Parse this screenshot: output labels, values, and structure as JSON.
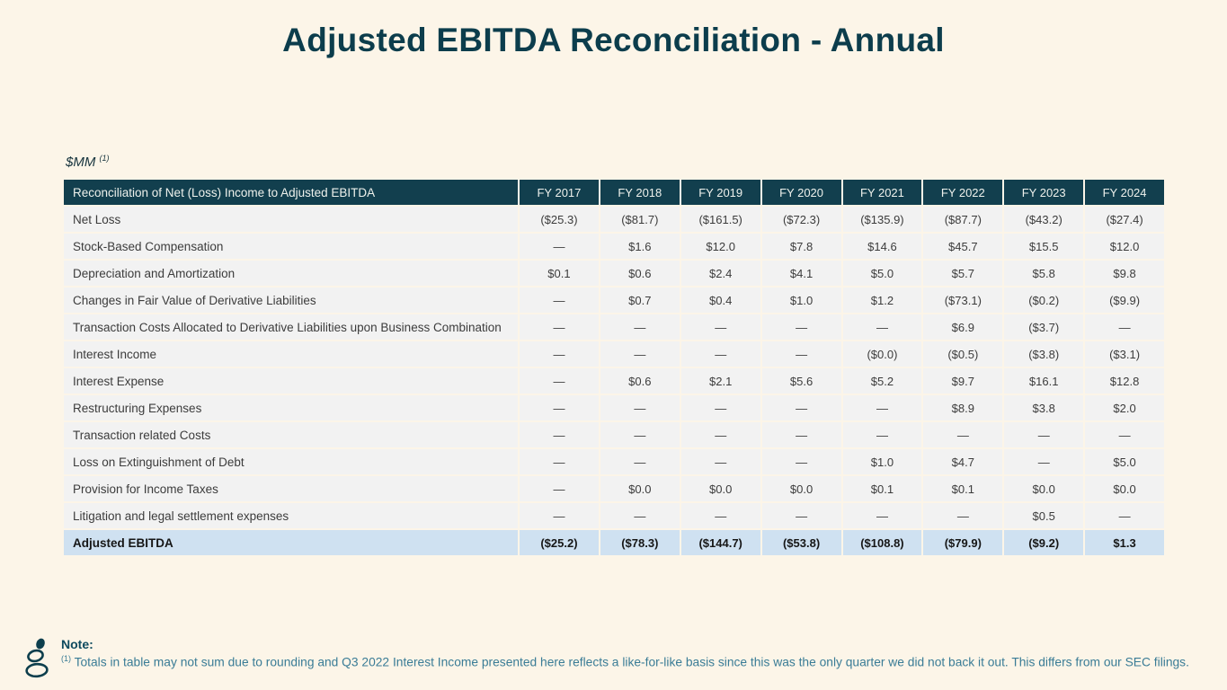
{
  "page": {
    "title": "Adjusted EBITDA Reconciliation - Annual",
    "units_label": "$MM",
    "units_footnote": "(1)"
  },
  "table": {
    "header": {
      "row_header": "Reconciliation of Net (Loss) Income to Adjusted EBITDA",
      "columns": [
        "FY 2017",
        "FY 2018",
        "FY 2019",
        "FY 2020",
        "FY 2021",
        "FY 2022",
        "FY 2023",
        "FY 2024"
      ]
    },
    "rows": [
      {
        "label": "Net Loss",
        "values": [
          "($25.3)",
          "($81.7)",
          "($161.5)",
          "($72.3)",
          "($135.9)",
          "($87.7)",
          "($43.2)",
          "($27.4)"
        ]
      },
      {
        "label": "Stock-Based Compensation",
        "values": [
          "—",
          "$1.6",
          "$12.0",
          "$7.8",
          "$14.6",
          "$45.7",
          "$15.5",
          "$12.0"
        ]
      },
      {
        "label": "Depreciation and Amortization",
        "values": [
          "$0.1",
          "$0.6",
          "$2.4",
          "$4.1",
          "$5.0",
          "$5.7",
          "$5.8",
          "$9.8"
        ]
      },
      {
        "label": "Changes in Fair Value of Derivative Liabilities",
        "values": [
          "—",
          "$0.7",
          "$0.4",
          "$1.0",
          "$1.2",
          "($73.1)",
          "($0.2)",
          "($9.9)"
        ]
      },
      {
        "label": "Transaction Costs Allocated to Derivative Liabilities upon Business Combination",
        "values": [
          "—",
          "—",
          "—",
          "—",
          "—",
          "$6.9",
          "($3.7)",
          "—"
        ]
      },
      {
        "label": "Interest Income",
        "values": [
          "—",
          "—",
          "—",
          "—",
          "($0.0)",
          "($0.5)",
          "($3.8)",
          "($3.1)"
        ]
      },
      {
        "label": "Interest Expense",
        "values": [
          "—",
          "$0.6",
          "$2.1",
          "$5.6",
          "$5.2",
          "$9.7",
          "$16.1",
          "$12.8"
        ]
      },
      {
        "label": "Restructuring Expenses",
        "values": [
          "—",
          "—",
          "—",
          "—",
          "—",
          "$8.9",
          "$3.8",
          "$2.0"
        ]
      },
      {
        "label": "Transaction related Costs",
        "values": [
          "—",
          "—",
          "—",
          "—",
          "—",
          "—",
          "—",
          "—"
        ]
      },
      {
        "label": "Loss on Extinguishment of Debt",
        "values": [
          "—",
          "—",
          "—",
          "—",
          "$1.0",
          "$4.7",
          "—",
          "$5.0"
        ]
      },
      {
        "label": "Provision for Income Taxes",
        "values": [
          "—",
          "$0.0",
          "$0.0",
          "$0.0",
          "$0.1",
          "$0.1",
          "$0.0",
          "$0.0"
        ]
      },
      {
        "label": "Litigation and legal settlement expenses",
        "values": [
          "—",
          "—",
          "—",
          "—",
          "—",
          "—",
          "$0.5",
          "—"
        ]
      }
    ],
    "total_row": {
      "label": "Adjusted EBITDA",
      "values": [
        "($25.2)",
        "($78.3)",
        "($144.7)",
        "($53.8)",
        "($108.8)",
        "($79.9)",
        "($9.2)",
        "$1.3"
      ]
    }
  },
  "note": {
    "label": "Note:",
    "footnote_marker": "(1)",
    "text": "Totals in table may not sum due to rounding and Q3 2022 Interest Income presented here reflects a like-for-like basis since this was the only quarter we did not back it out. This differs from our SEC filings."
  },
  "icons": {
    "logo": "stacked-stones-logo"
  },
  "colors": {
    "background": "#fcf5e8",
    "title": "#0c3d4c",
    "header_bg": "#123f4e",
    "header_text": "#eef1ec",
    "row_bg": "#f2f2f2",
    "row_text": "#3c3c3c",
    "total_bg": "#cfe1f1",
    "note_text": "#3a7c96"
  }
}
